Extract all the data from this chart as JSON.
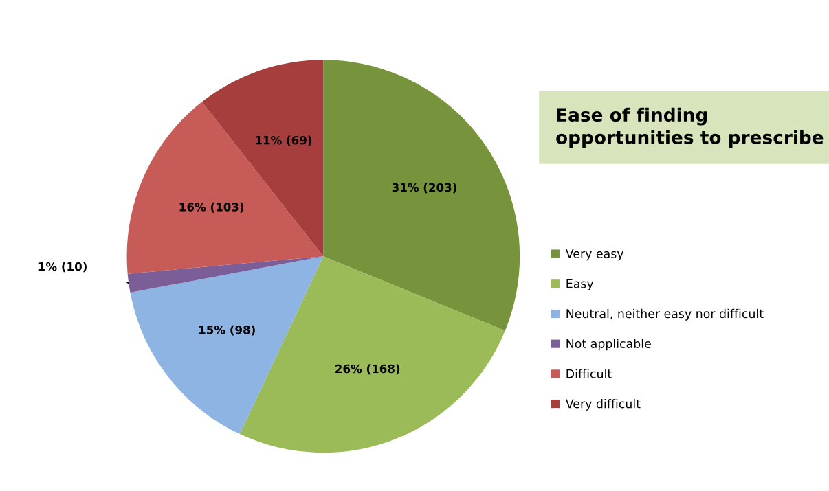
{
  "chart_data": {
    "type": "pie",
    "title": "Ease of finding opportunities to prescribe",
    "categories": [
      "Very easy",
      "Easy",
      "Neutral, neither easy nor difficult",
      "Not applicable",
      "Difficult",
      "Very difficult"
    ],
    "values": [
      203,
      168,
      98,
      10,
      103,
      69
    ],
    "colors": [
      "#77933c",
      "#9bbb59",
      "#8eb4e3",
      "#7b5e98",
      "#c65b57",
      "#a53e3c"
    ],
    "value_labels": [
      "31% (203)",
      "26% (168)",
      "15% (98)",
      "1% (10)",
      "16% (103)",
      "11% (69)"
    ],
    "legend": "right"
  }
}
